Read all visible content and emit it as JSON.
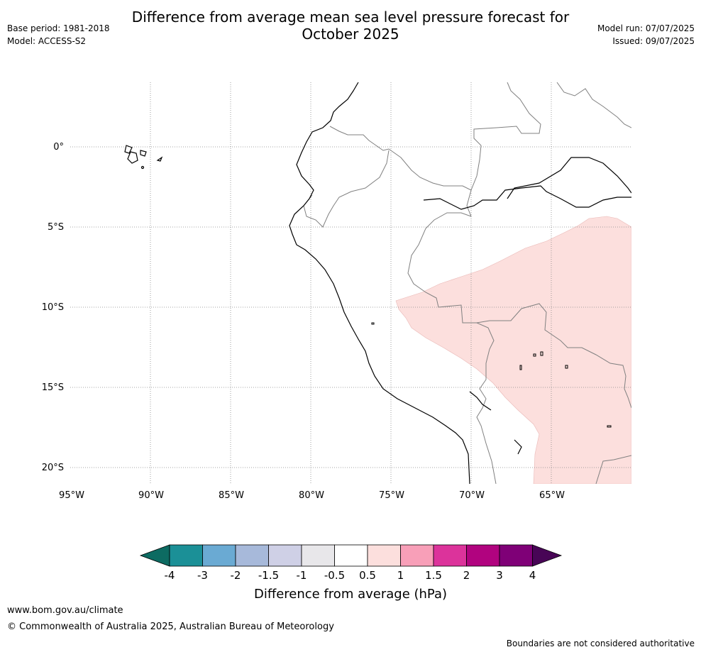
{
  "header": {
    "title_line1": "Difference from average mean sea level pressure forecast for",
    "title_line2": "October 2025",
    "base_period": "Base period: 1981-2018",
    "model": "Model: ACCESS-S2",
    "model_run": "Model run: 07/07/2025",
    "issued": "Issued: 09/07/2025"
  },
  "map": {
    "lat_labels": [
      "0°",
      "5°S",
      "10°S",
      "15°S",
      "20°S"
    ],
    "lon_labels": [
      "95°W",
      "90°W",
      "85°W",
      "80°W",
      "75°W",
      "70°W",
      "65°W"
    ],
    "anomaly_region_category": "0.5 to 1",
    "colors": {
      "gridline": "#888888",
      "coastline": "#000000",
      "border": "#808080",
      "anomaly_fill": "#fcdfdd"
    }
  },
  "legend": {
    "title": "Difference from average (hPa)",
    "tick_labels": [
      "-4",
      "-3",
      "-2",
      "-1.5",
      "-1",
      "-0.5",
      "0.5",
      "1",
      "1.5",
      "2",
      "3",
      "4"
    ],
    "colors": [
      "#0d6b62",
      "#1b9097",
      "#6aaad3",
      "#a7b9da",
      "#cfd0e6",
      "#e8e7ea",
      "#ffffff",
      "#fcdfdd",
      "#f89fb8",
      "#dc339b",
      "#b1037f",
      "#7f0077",
      "#480556"
    ]
  },
  "footer": {
    "url": "www.bom.gov.au/climate",
    "copyright": "© Commonwealth of Australia 2025, Australian Bureau of Meteorology",
    "disclaimer": "Boundaries are not considered authoritative"
  }
}
